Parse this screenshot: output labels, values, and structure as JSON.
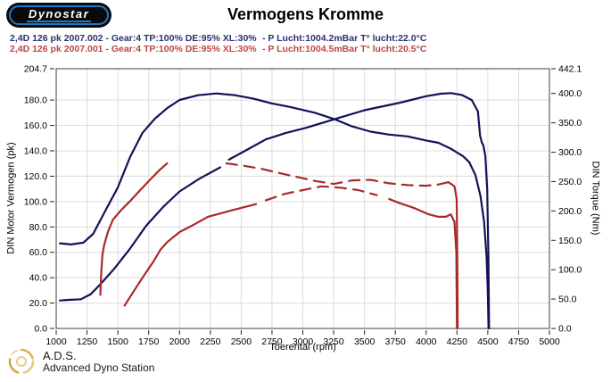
{
  "header": {
    "logo_text": "Dynostar",
    "title": "Vermogens Kromme"
  },
  "legend": {
    "runs": [
      {
        "label": "2,4D 126 pk 2007.002 - Gear:4 TP:100% DE:95% XL:30%",
        "conditions": "- P Lucht:1004.2mBar T° lucht:22.0°C",
        "color": "#2f2f6f"
      },
      {
        "label": "2,4D 126 pk 2007.001 - Gear:4 TP:100% DE:95% XL:30%",
        "conditions": "- P Lucht:1004.5mBar T° lucht:20.5°C",
        "color": "#bf4545"
      }
    ]
  },
  "chart_data": {
    "type": "line",
    "title": "Vermogens Kromme",
    "xlabel": "Toerental (rpm)",
    "ylabel_left": "DIN Motor Vermogen (pk)",
    "ylabel_right": "DIN Torque (Nm)",
    "xlim": [
      1000,
      5000
    ],
    "ylim_left": [
      0,
      204.7
    ],
    "ylim_right": [
      0,
      442.1
    ],
    "grid": true,
    "x_ticks": [
      1000,
      1250,
      1500,
      1750,
      2000,
      2250,
      2500,
      2750,
      3000,
      3250,
      3500,
      3750,
      4000,
      4250,
      4500,
      4750,
      5000
    ],
    "y_left_ticks": [
      204.7,
      180.0,
      160.0,
      140.0,
      120.0,
      100.0,
      80.0,
      60.0,
      40.0,
      20.0,
      0.0
    ],
    "y_right_ticks": [
      442.1,
      400.0,
      350.0,
      300.0,
      250.0,
      200.0,
      150.0,
      100.0,
      50.0,
      0.0
    ],
    "colors": {
      "run_002": "#121258",
      "run_001": "#a82a2a",
      "grid": "#dcdcdc",
      "frame": "#3c3c3c"
    },
    "series": [
      {
        "name": "power-2007.002",
        "axis": "left",
        "unit": "pk",
        "color": "#121258",
        "segments": [
          {
            "style": "solid",
            "points": [
              [
                1030,
                22
              ],
              [
                1100,
                22.5
              ],
              [
                1200,
                23
              ],
              [
                1280,
                27
              ],
              [
                1360,
                35
              ],
              [
                1470,
                47
              ],
              [
                1600,
                63
              ],
              [
                1730,
                81
              ],
              [
                1870,
                96
              ],
              [
                2000,
                108
              ],
              [
                2160,
                118
              ],
              [
                2330,
                127
              ]
            ]
          },
          {
            "style": "solid",
            "points": [
              [
                2400,
                133
              ],
              [
                2550,
                141
              ],
              [
                2700,
                149
              ],
              [
                2860,
                154
              ],
              [
                3020,
                158
              ],
              [
                3260,
                165
              ],
              [
                3500,
                172
              ],
              [
                3790,
                178
              ],
              [
                4000,
                183
              ],
              [
                4120,
                185
              ],
              [
                4200,
                185.5
              ],
              [
                4290,
                184
              ],
              [
                4370,
                180
              ],
              [
                4420,
                171
              ],
              [
                4437,
                152
              ],
              [
                4450,
                147
              ],
              [
                4465,
                144
              ],
              [
                4480,
                136
              ],
              [
                4495,
                110
              ],
              [
                4505,
                55
              ],
              [
                4510,
                0
              ]
            ]
          }
        ]
      },
      {
        "name": "torque-2007.002",
        "axis": "right",
        "unit": "Nm",
        "color": "#121258",
        "segments": [
          {
            "style": "solid",
            "points": [
              [
                1030,
                145
              ],
              [
                1120,
                143
              ],
              [
                1220,
                146
              ],
              [
                1300,
                161
              ],
              [
                1400,
                201
              ],
              [
                1500,
                240
              ],
              [
                1600,
                292
              ],
              [
                1700,
                333
              ],
              [
                1800,
                357
              ],
              [
                1900,
                375
              ],
              [
                2000,
                389
              ],
              [
                2150,
                397
              ],
              [
                2300,
                400
              ],
              [
                2450,
                397
              ],
              [
                2600,
                391
              ],
              [
                2750,
                383
              ],
              [
                2900,
                377
              ],
              [
                3100,
                367
              ],
              [
                3260,
                356
              ],
              [
                3400,
                344
              ],
              [
                3550,
                335
              ],
              [
                3700,
                330
              ],
              [
                3850,
                327
              ],
              [
                4000,
                320
              ],
              [
                4100,
                316
              ],
              [
                4200,
                306
              ],
              [
                4300,
                293
              ],
              [
                4350,
                283
              ],
              [
                4400,
                261
              ],
              [
                4440,
                226
              ],
              [
                4470,
                182
              ],
              [
                4490,
                122
              ],
              [
                4500,
                62
              ],
              [
                4506,
                0
              ]
            ]
          }
        ]
      },
      {
        "name": "power-2007.001",
        "axis": "left",
        "unit": "pk",
        "color": "#a82a2a",
        "segments": [
          {
            "style": "solid",
            "points": [
              [
                1555,
                18
              ],
              [
                1620,
                28
              ],
              [
                1700,
                40
              ],
              [
                1790,
                53
              ],
              [
                1845,
                62
              ],
              [
                1900,
                68
              ],
              [
                2000,
                76
              ],
              [
                2100,
                81
              ],
              [
                2230,
                88
              ],
              [
                2420,
                93
              ],
              [
                2620,
                98
              ]
            ]
          },
          {
            "style": "dashed",
            "points": [
              [
                2700,
                101
              ],
              [
                2850,
                106
              ],
              [
                3000,
                109
              ],
              [
                3150,
                112
              ],
              [
                3300,
                111
              ],
              [
                3450,
                109
              ],
              [
                3600,
                105
              ]
            ]
          },
          {
            "style": "solid",
            "points": [
              [
                3700,
                102
              ],
              [
                3780,
                99
              ],
              [
                3900,
                95
              ],
              [
                4020,
                90
              ],
              [
                4100,
                88
              ],
              [
                4160,
                88
              ],
              [
                4200,
                90
              ],
              [
                4230,
                84
              ],
              [
                4245,
                60
              ],
              [
                4250,
                0
              ]
            ]
          }
        ]
      },
      {
        "name": "torque-2007.001",
        "axis": "right",
        "unit": "Nm",
        "color": "#a82a2a",
        "segments": [
          {
            "style": "solid",
            "points": [
              [
                1358,
                57
              ],
              [
                1365,
                95
              ],
              [
                1375,
                125
              ],
              [
                1390,
                143
              ],
              [
                1420,
                165
              ],
              [
                1460,
                185
              ],
              [
                1520,
                200
              ],
              [
                1600,
                217
              ],
              [
                1680,
                235
              ],
              [
                1760,
                253
              ],
              [
                1840,
                270
              ],
              [
                1900,
                281
              ]
            ]
          },
          {
            "style": "dashed",
            "points": [
              [
                2380,
                281
              ],
              [
                2520,
                277
              ],
              [
                2660,
                272
              ],
              [
                2800,
                265
              ],
              [
                2950,
                258
              ],
              [
                3100,
                251
              ],
              [
                3250,
                246
              ],
              [
                3400,
                252
              ],
              [
                3550,
                253
              ],
              [
                3700,
                247
              ],
              [
                3850,
                244
              ],
              [
                4000,
                243
              ],
              [
                4100,
                245
              ],
              [
                4180,
                249
              ]
            ]
          },
          {
            "style": "solid",
            "points": [
              [
                4180,
                249
              ],
              [
                4230,
                242
              ],
              [
                4248,
                220
              ],
              [
                4253,
                120
              ],
              [
                4256,
                0
              ]
            ]
          }
        ]
      }
    ]
  },
  "footer": {
    "abbr": "A.D.S.",
    "name": "Advanced Dyno Station"
  }
}
